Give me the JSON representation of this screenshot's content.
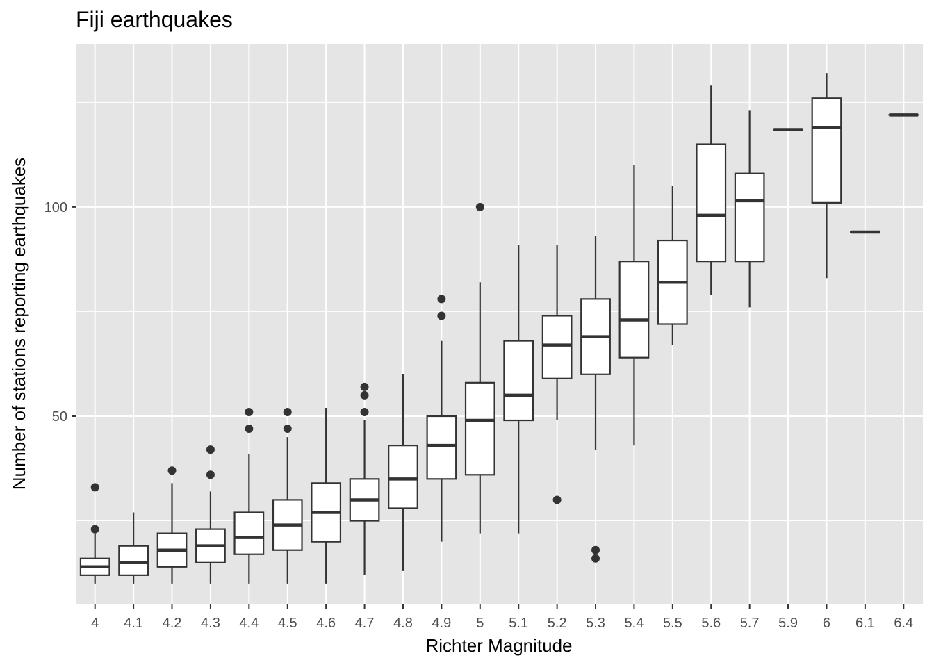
{
  "chart_data": {
    "type": "boxplot",
    "title": "Fiji earthquakes",
    "xlabel": "Richter Magnitude",
    "ylabel": "Number of stations reporting earthquakes",
    "ylim": [
      5,
      139
    ],
    "y_ticks": [
      50,
      100
    ],
    "grid": true,
    "colors": {
      "panel": "#e5e5e5",
      "grid": "#ffffff",
      "box_fill": "#ffffff",
      "stroke": "#333333",
      "tick_text": "#4d4d4d"
    },
    "categories": [
      "4",
      "4.1",
      "4.2",
      "4.3",
      "4.4",
      "4.5",
      "4.6",
      "4.7",
      "4.8",
      "4.9",
      "5",
      "5.1",
      "5.2",
      "5.3",
      "5.4",
      "5.5",
      "5.6",
      "5.7",
      "5.9",
      "6",
      "6.1",
      "6.4"
    ],
    "boxes": [
      {
        "q1": 12,
        "median": 14,
        "q3": 16,
        "lower": 10,
        "upper": 22,
        "outliers": [
          33,
          23
        ]
      },
      {
        "q1": 12,
        "median": 15,
        "q3": 19,
        "lower": 10,
        "upper": 27,
        "outliers": []
      },
      {
        "q1": 14,
        "median": 18,
        "q3": 22,
        "lower": 10,
        "upper": 34,
        "outliers": [
          37
        ]
      },
      {
        "q1": 15,
        "median": 19,
        "q3": 23,
        "lower": 10,
        "upper": 32,
        "outliers": [
          42,
          36
        ]
      },
      {
        "q1": 17,
        "median": 21,
        "q3": 27,
        "lower": 10,
        "upper": 41,
        "outliers": [
          51,
          47
        ]
      },
      {
        "q1": 18,
        "median": 24,
        "q3": 30,
        "lower": 10,
        "upper": 45,
        "outliers": [
          51,
          47
        ]
      },
      {
        "q1": 20,
        "median": 27,
        "q3": 34,
        "lower": 10,
        "upper": 52,
        "outliers": []
      },
      {
        "q1": 25,
        "median": 30,
        "q3": 35,
        "lower": 12,
        "upper": 49,
        "outliers": [
          57,
          55,
          51
        ]
      },
      {
        "q1": 28,
        "median": 35,
        "q3": 43,
        "lower": 13,
        "upper": 60,
        "outliers": []
      },
      {
        "q1": 35,
        "median": 43,
        "q3": 50,
        "lower": 20,
        "upper": 68,
        "outliers": [
          78,
          74
        ]
      },
      {
        "q1": 36,
        "median": 49,
        "q3": 58,
        "lower": 22,
        "upper": 82,
        "outliers": [
          100
        ]
      },
      {
        "q1": 49,
        "median": 55,
        "q3": 68,
        "lower": 22,
        "upper": 91,
        "outliers": []
      },
      {
        "q1": 59,
        "median": 67,
        "q3": 74,
        "lower": 49,
        "upper": 91,
        "outliers": [
          30
        ]
      },
      {
        "q1": 60,
        "median": 69,
        "q3": 78,
        "lower": 42,
        "upper": 93,
        "outliers": [
          18,
          16
        ]
      },
      {
        "q1": 64,
        "median": 73,
        "q3": 87,
        "lower": 43,
        "upper": 110,
        "outliers": []
      },
      {
        "q1": 72,
        "median": 82,
        "q3": 92,
        "lower": 67,
        "upper": 105,
        "outliers": []
      },
      {
        "q1": 87,
        "median": 98,
        "q3": 115,
        "lower": 79,
        "upper": 129,
        "outliers": []
      },
      {
        "q1": 87,
        "median": 101.5,
        "q3": 108,
        "lower": 76,
        "upper": 123,
        "outliers": []
      },
      {
        "q1": 118.5,
        "median": 118.5,
        "q3": 118.5,
        "lower": 118.5,
        "upper": 118.5,
        "outliers": []
      },
      {
        "q1": 101,
        "median": 119,
        "q3": 126,
        "lower": 83,
        "upper": 132,
        "outliers": []
      },
      {
        "q1": 94,
        "median": 94,
        "q3": 94,
        "lower": 94,
        "upper": 94,
        "outliers": []
      },
      {
        "q1": 122,
        "median": 122,
        "q3": 122,
        "lower": 122,
        "upper": 122,
        "outliers": []
      }
    ]
  }
}
